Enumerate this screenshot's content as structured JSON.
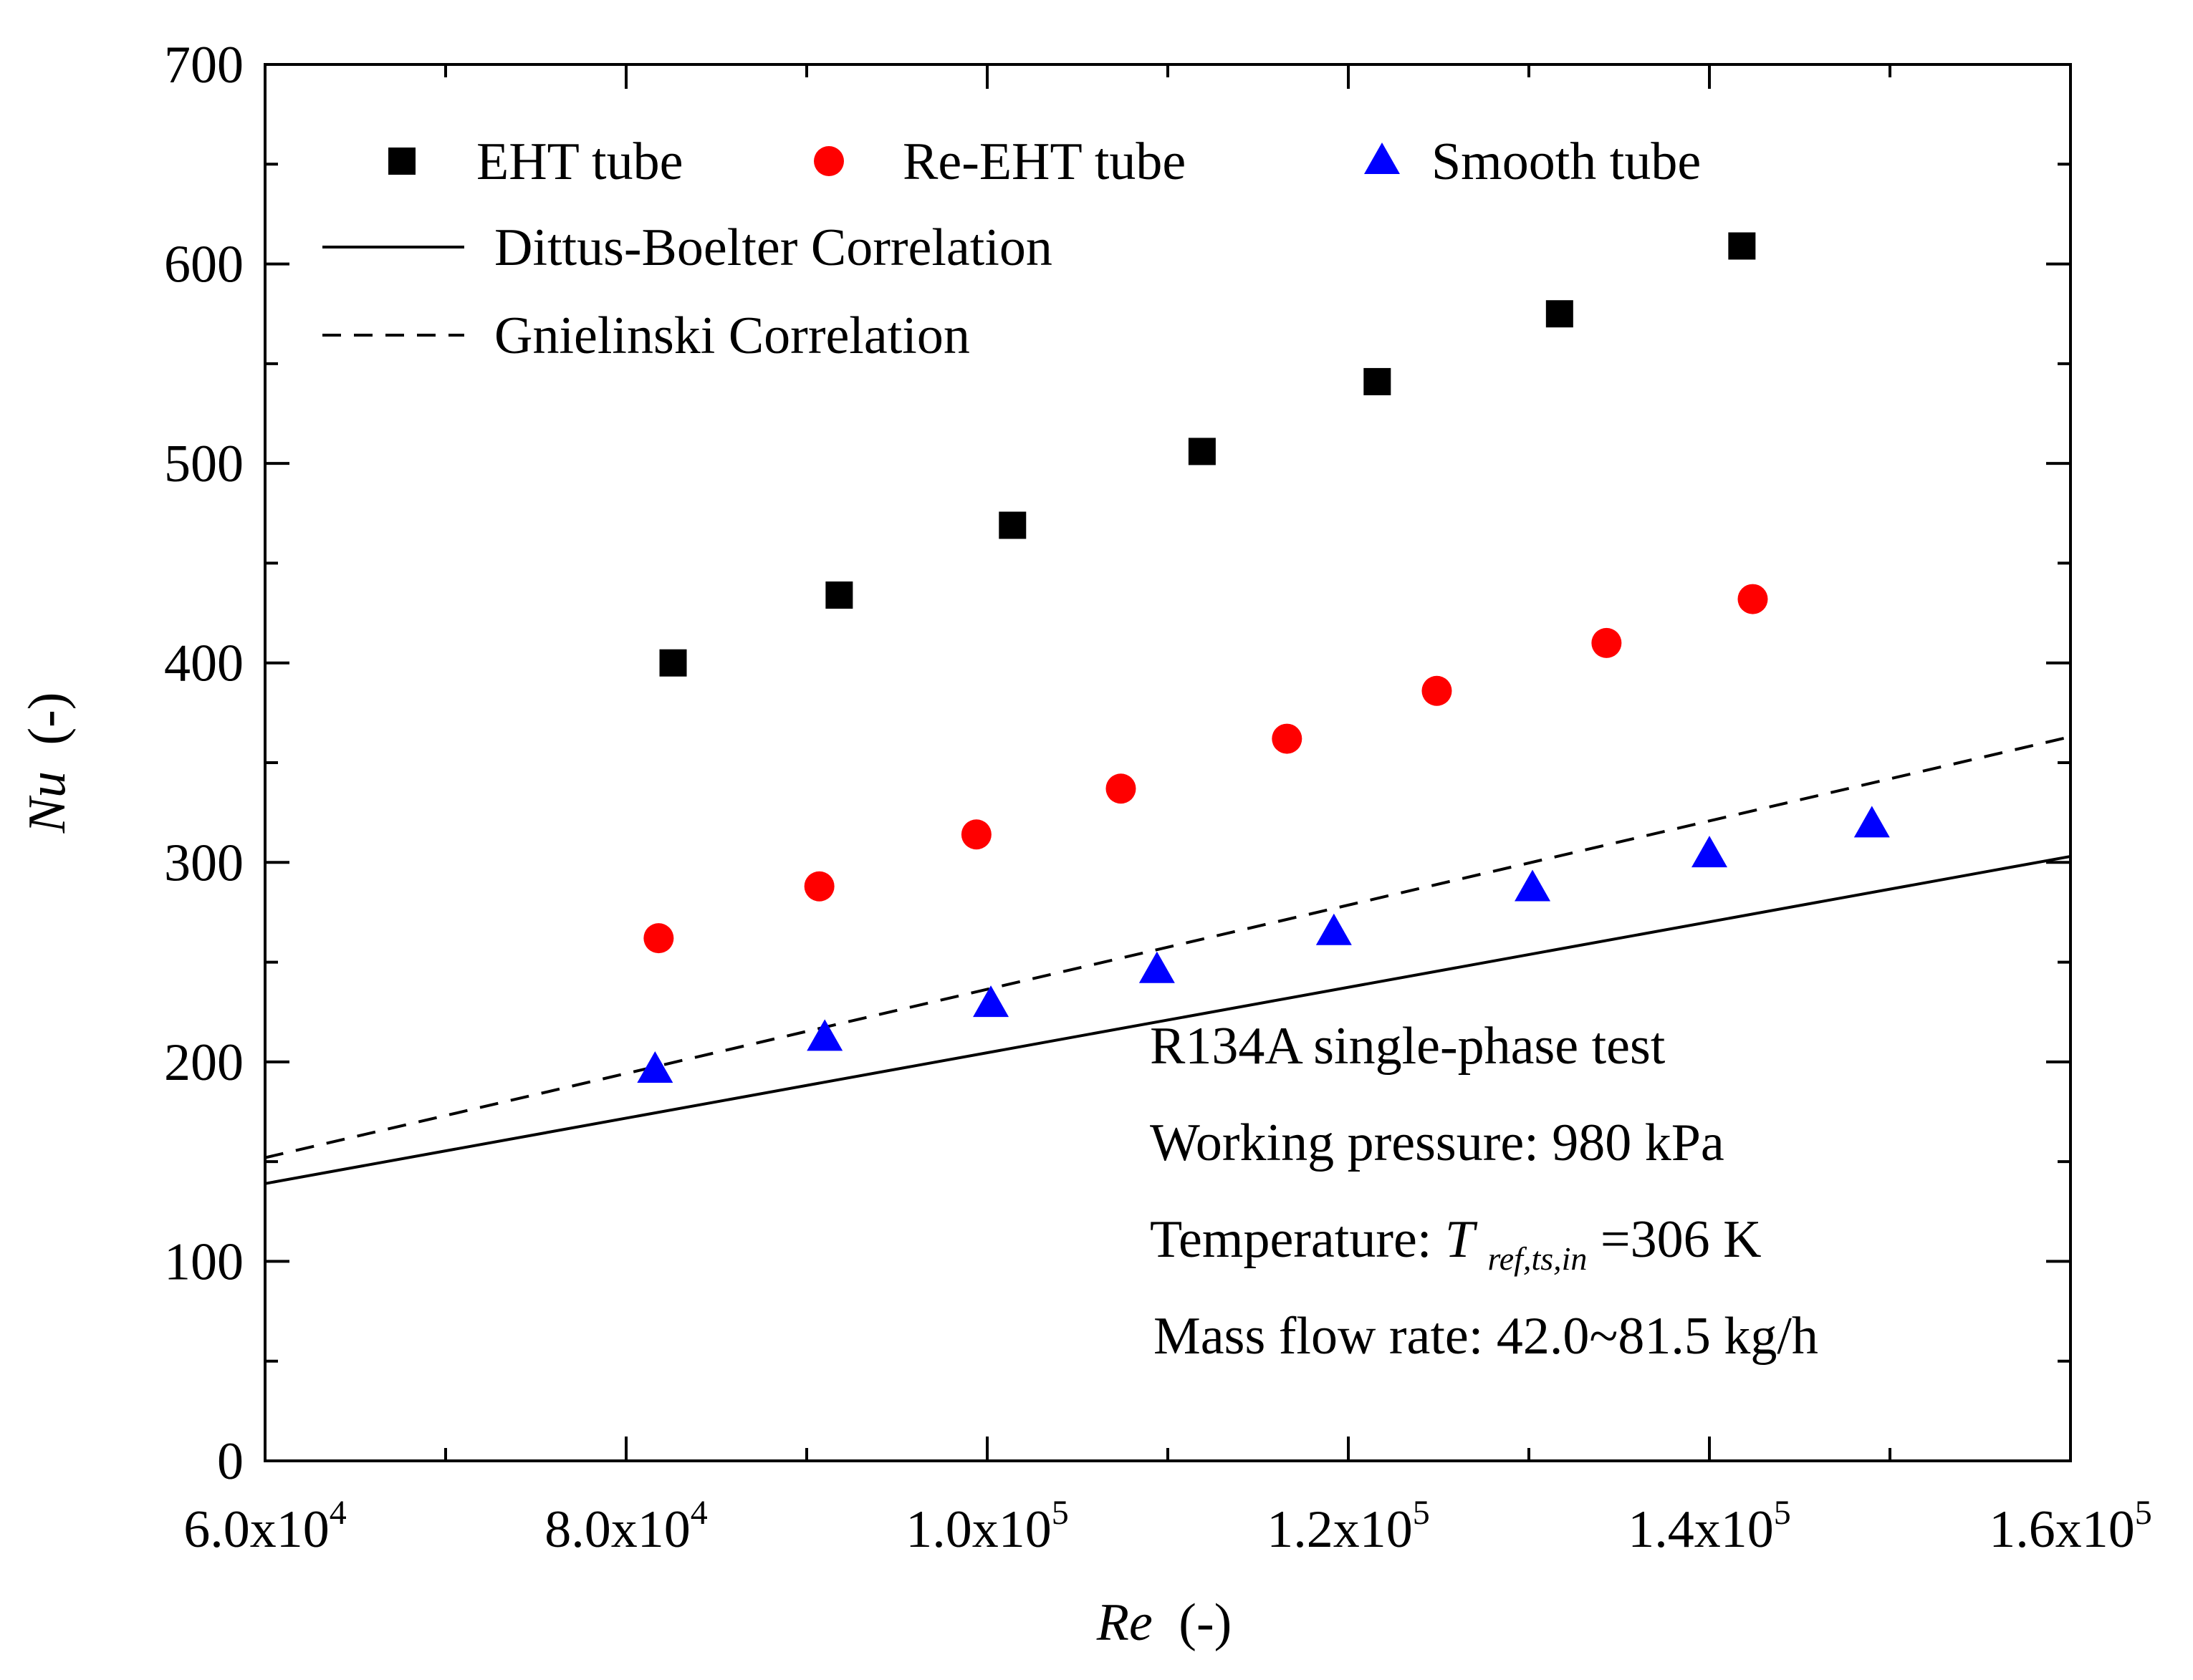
{
  "chart_data": {
    "type": "scatter",
    "xlabel": "Re",
    "xlabel_unit": "(-)",
    "ylabel": "Nu",
    "ylabel_unit": "(-)",
    "xlim": [
      60000,
      160000
    ],
    "ylim": [
      0,
      700
    ],
    "x_major_ticks": [
      60000,
      80000,
      100000,
      120000,
      140000,
      160000
    ],
    "x_minor_ticks": [
      70000,
      90000,
      110000,
      130000,
      150000
    ],
    "x_tick_labels": [
      {
        "mant": "6.0x10",
        "exp": "4"
      },
      {
        "mant": "8.0x10",
        "exp": "4"
      },
      {
        "mant": "1.0x10",
        "exp": "5"
      },
      {
        "mant": "1.2x10",
        "exp": "5"
      },
      {
        "mant": "1.4x10",
        "exp": "5"
      },
      {
        "mant": "1.6x10",
        "exp": "5"
      }
    ],
    "y_major_ticks": [
      0,
      100,
      200,
      300,
      400,
      500,
      600,
      700
    ],
    "y_minor_ticks": [
      50,
      150,
      250,
      350,
      450,
      550,
      650
    ],
    "y_tick_labels": [
      "0",
      "100",
      "200",
      "300",
      "400",
      "500",
      "600",
      "700"
    ],
    "series": [
      {
        "name": "EHT tube",
        "marker": "square",
        "color": "#000000",
        "x": [
          82600,
          91800,
          101400,
          111900,
          121600,
          131700,
          141800
        ],
        "y": [
          400,
          434,
          469,
          506,
          541,
          575,
          609
        ]
      },
      {
        "name": "Re-EHT tube",
        "marker": "circle",
        "color": "#ff0000",
        "x": [
          81800,
          90700,
          99400,
          107400,
          116600,
          124900,
          134300,
          142400
        ],
        "y": [
          262,
          288,
          314,
          337,
          362,
          386,
          410,
          432
        ]
      },
      {
        "name": "Smooth tube",
        "marker": "triangle",
        "color": "#0000ff",
        "x": [
          81600,
          91000,
          100200,
          109400,
          119200,
          130200,
          140000,
          149000
        ],
        "y": [
          196,
          212,
          229,
          246,
          265,
          287,
          304,
          319
        ]
      }
    ],
    "lines": [
      {
        "name": "Dittus-Boelter Correlation",
        "style": "solid",
        "x": [
          60000,
          160000
        ],
        "y": [
          139,
          303
        ]
      },
      {
        "name": "Gnielinski Correlation",
        "style": "dashed",
        "x": [
          60000,
          160000
        ],
        "y": [
          152,
          363
        ]
      }
    ],
    "legend": {
      "marker_entries": [
        "EHT tube",
        "Re-EHT tube",
        "Smooth tube"
      ],
      "line_entries": [
        "Dittus-Boelter Correlation",
        "Gnielinski Correlation"
      ],
      "position": "top-left"
    },
    "annotations": {
      "line1": "R134A single-phase test",
      "line2": "Working pressure: 980 kPa",
      "line3_prefix": "Temperature: ",
      "line3_var": "T",
      "line3_sub": "ref,ts,in",
      "line3_suffix": "=306 K",
      "line4": "Mass flow rate: 42.0~81.5 kg/h"
    }
  }
}
